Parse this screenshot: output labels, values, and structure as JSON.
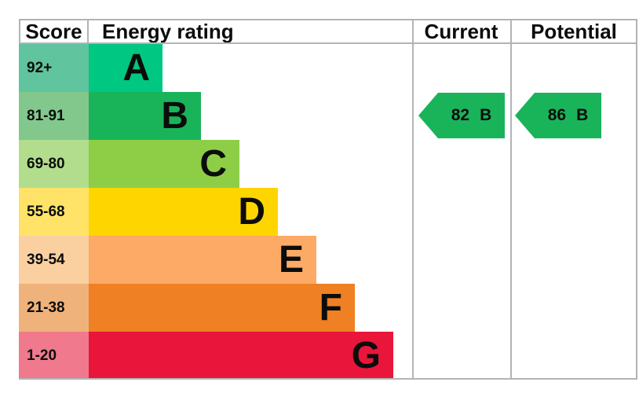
{
  "colors": {
    "background": "#ffffff",
    "border": "#b1b4b6",
    "text": "#0b0c0c",
    "arrow": "#19b459"
  },
  "header": {
    "score": "Score",
    "rating": "Energy rating",
    "current": "Current",
    "potential": "Potential"
  },
  "bands": [
    {
      "letter": "A",
      "score": "92+",
      "band_color": "#00c781",
      "score_color": "#60c49e"
    },
    {
      "letter": "B",
      "score": "81-91",
      "band_color": "#19b459",
      "score_color": "#82c88c"
    },
    {
      "letter": "C",
      "score": "69-80",
      "band_color": "#8dce46",
      "score_color": "#b2dd8c"
    },
    {
      "letter": "D",
      "score": "55-68",
      "band_color": "#ffd500",
      "score_color": "#ffe368"
    },
    {
      "letter": "E",
      "score": "39-54",
      "band_color": "#fcaa65",
      "score_color": "#fad0a1"
    },
    {
      "letter": "F",
      "score": "21-38",
      "band_color": "#ef8023",
      "score_color": "#f0b27b"
    },
    {
      "letter": "G",
      "score": "1-20",
      "band_color": "#e9153b",
      "score_color": "#f0798d"
    }
  ],
  "current": {
    "value": "82",
    "band": "B"
  },
  "potential": {
    "value": "86",
    "band": "B"
  },
  "chart_data": {
    "type": "bar",
    "title": "Energy rating (EPC) chart",
    "columns": [
      "Score",
      "Energy rating",
      "Current",
      "Potential"
    ],
    "categories": [
      "A",
      "B",
      "C",
      "D",
      "E",
      "F",
      "G"
    ],
    "score_ranges": [
      "92+",
      "81-91",
      "69-80",
      "55-68",
      "39-54",
      "21-38",
      "1-20"
    ],
    "band_colors": [
      "#00c781",
      "#19b459",
      "#8dce46",
      "#ffd500",
      "#fcaa65",
      "#ef8023",
      "#e9153b"
    ],
    "series": [
      {
        "name": "Current",
        "value": 82,
        "band": "B"
      },
      {
        "name": "Potential",
        "value": 86,
        "band": "B"
      }
    ],
    "layout_hints": {
      "bar_orientation": "horizontal",
      "bars_step_wider_from_A_to_G": true,
      "grid": false,
      "legend": "none"
    }
  }
}
